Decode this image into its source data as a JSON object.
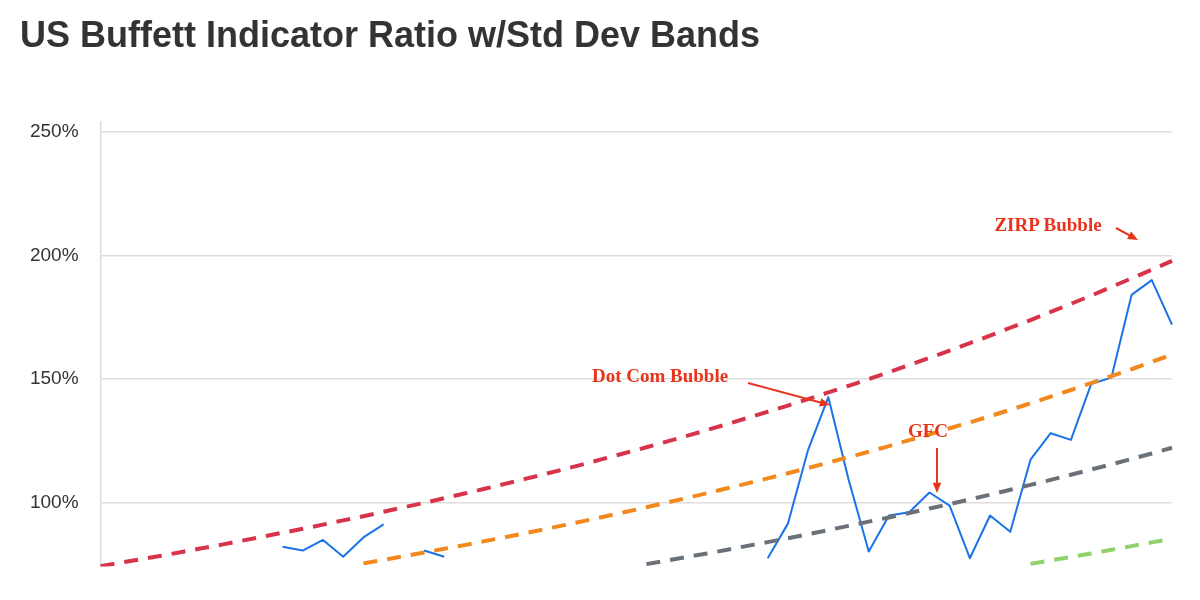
{
  "chart_data": {
    "type": "line",
    "title": "US Buffett Indicator Ratio w/Std Dev Bands",
    "categories": [
      null,
      null,
      null,
      null,
      null,
      null,
      null,
      null,
      null,
      null,
      null,
      null,
      null,
      null,
      null,
      null,
      null,
      null,
      null,
      null,
      null,
      null,
      null,
      null,
      null,
      null,
      null,
      null,
      null,
      null,
      null,
      null,
      null,
      null,
      null,
      null,
      null,
      null,
      null,
      null,
      null,
      null,
      null,
      null,
      null,
      null,
      null,
      null,
      null,
      null,
      null,
      null,
      null,
      null
    ],
    "ylim": [
      74,
      254
    ],
    "yticks": [
      {
        "value": 100,
        "label": "100%"
      },
      {
        "value": 150,
        "label": "150%"
      },
      {
        "value": 200,
        "label": "200%"
      },
      {
        "value": 250,
        "label": "250%"
      }
    ],
    "grid": "y",
    "legend": false,
    "marker": "none",
    "tick_labels": "y",
    "series": [
      {
        "color": "#d7334a",
        "line_style": "dashed",
        "values": [
          74.2,
          75.6,
          77.0,
          78.4,
          79.9,
          81.4,
          82.9,
          84.5,
          86.1,
          87.7,
          89.3,
          91.0,
          92.7,
          94.4,
          96.2,
          98.0,
          99.8,
          101.7,
          103.6,
          105.5,
          107.5,
          109.5,
          111.5,
          113.6,
          115.7,
          117.9,
          120.1,
          122.3,
          124.6,
          126.9,
          129.3,
          131.7,
          134.2,
          136.7,
          139.2,
          141.8,
          144.5,
          147.2,
          149.9,
          152.7,
          155.6,
          158.5,
          161.4,
          164.5,
          167.5,
          170.7,
          173.8,
          177.1,
          180.4,
          183.7,
          187.2,
          190.7,
          194.2,
          197.8
        ]
      },
      {
        "color": "#f2891f",
        "line_style": "dashed",
        "values": [
          null,
          null,
          null,
          null,
          null,
          null,
          null,
          null,
          null,
          null,
          null,
          null,
          null,
          75.3,
          76.7,
          78.2,
          79.7,
          81.2,
          82.7,
          84.3,
          85.9,
          87.5,
          89.2,
          90.9,
          92.6,
          94.4,
          96.2,
          98.0,
          99.9,
          101.8,
          103.7,
          105.7,
          107.7,
          109.7,
          111.8,
          113.9,
          116.1,
          118.3,
          120.5,
          122.8,
          125.2,
          127.5,
          130.0,
          132.4,
          134.9,
          137.5,
          140.1,
          142.8,
          145.5,
          148.3,
          151.1,
          153.9,
          156.9,
          159.8
        ]
      },
      {
        "color": "#6b7178",
        "line_style": "dashed",
        "values": [
          null,
          null,
          null,
          null,
          null,
          null,
          null,
          null,
          null,
          null,
          null,
          null,
          null,
          null,
          null,
          null,
          null,
          null,
          null,
          null,
          null,
          null,
          null,
          null,
          null,
          null,
          null,
          75.0,
          76.4,
          77.9,
          79.3,
          80.8,
          82.4,
          83.9,
          85.5,
          87.1,
          88.8,
          90.5,
          92.2,
          93.9,
          95.7,
          97.5,
          99.3,
          101.2,
          103.1,
          105.1,
          107.1,
          109.1,
          111.2,
          113.3,
          115.4,
          117.6,
          119.8,
          122.1
        ]
      },
      {
        "color": "#8fd16b",
        "line_style": "dashed",
        "values": [
          null,
          null,
          null,
          null,
          null,
          null,
          null,
          null,
          null,
          null,
          null,
          null,
          null,
          null,
          null,
          null,
          null,
          null,
          null,
          null,
          null,
          null,
          null,
          null,
          null,
          null,
          null,
          null,
          null,
          null,
          null,
          null,
          null,
          null,
          null,
          null,
          null,
          null,
          null,
          null,
          null,
          null,
          null,
          null,
          null,
          null,
          75.1,
          76.5,
          77.9,
          79.3,
          80.8,
          82.3,
          83.8,
          85.3
        ]
      },
      {
        "color": "#1a73e8",
        "line_style": "solid",
        "values": [
          null,
          null,
          null,
          null,
          null,
          null,
          null,
          null,
          null,
          82,
          80.5,
          84.8,
          78,
          85.8,
          91.1,
          null,
          80.5,
          78,
          null,
          null,
          null,
          null,
          null,
          null,
          null,
          null,
          null,
          null,
          null,
          null,
          null,
          null,
          null,
          77.4,
          91.4,
          121.3,
          142.6,
          109.3,
          80.1,
          94.7,
          96,
          104,
          98.7,
          77.4,
          94.7,
          88.1,
          117.3,
          128,
          125.3,
          147.9,
          150.5,
          184,
          190,
          172
        ]
      }
    ],
    "annotations": [
      "Dot Com Bubble",
      "GFC",
      "ZIRP Bubble"
    ]
  }
}
